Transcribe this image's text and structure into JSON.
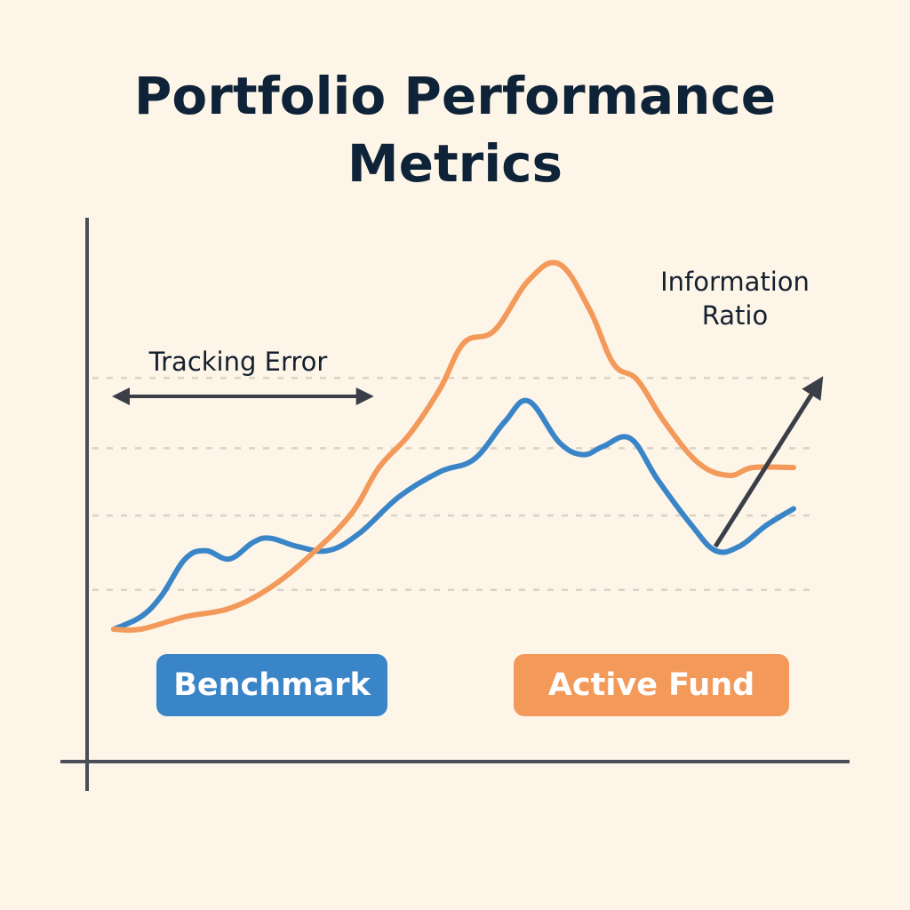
{
  "colors": {
    "background": "#fdf5e8",
    "title": "#0f2338",
    "axis": "#4a4f57",
    "grid": "#d9d2c6",
    "benchmark": "#3a85c8",
    "active_fund": "#f39a5a",
    "annotation": "#3a3f47"
  },
  "chart_data": {
    "type": "line",
    "title_lines": [
      "Portfolio Performance",
      "Metrics"
    ],
    "xlabel": "",
    "ylabel": "",
    "xlim": [
      0,
      100
    ],
    "ylim": [
      0,
      100
    ],
    "grid": "horizontal-dashed",
    "gridlines_y": [
      10.4,
      30.1,
      47.9,
      66.5
    ],
    "series": [
      {
        "name": "Benchmark",
        "color_key": "benchmark",
        "points": [
          [
            0,
            0
          ],
          [
            4,
            3.3
          ],
          [
            7,
            8.8
          ],
          [
            10.5,
            18.6
          ],
          [
            13.5,
            20.8
          ],
          [
            17,
            18.6
          ],
          [
            20.5,
            23.0
          ],
          [
            23,
            24.1
          ],
          [
            27,
            21.9
          ],
          [
            31.5,
            20.8
          ],
          [
            36,
            25.2
          ],
          [
            42,
            35.1
          ],
          [
            48,
            41.7
          ],
          [
            53,
            45.0
          ],
          [
            57.5,
            54.9
          ],
          [
            61,
            60.4
          ],
          [
            65.5,
            49.5
          ],
          [
            69,
            46.2
          ],
          [
            72,
            48.4
          ],
          [
            76,
            50.5
          ],
          [
            80,
            39.6
          ],
          [
            85,
            27.5
          ],
          [
            88.5,
            20.8
          ],
          [
            92,
            21.9
          ],
          [
            96,
            27.5
          ],
          [
            100,
            31.9
          ]
        ]
      },
      {
        "name": "Active Fund",
        "color_key": "active_fund",
        "points": [
          [
            0,
            0
          ],
          [
            4,
            0
          ],
          [
            10.5,
            3.3
          ],
          [
            17,
            5.5
          ],
          [
            23,
            11.0
          ],
          [
            29,
            19.7
          ],
          [
            35,
            30.7
          ],
          [
            39,
            42.8
          ],
          [
            43.5,
            51.6
          ],
          [
            48,
            63.7
          ],
          [
            51.5,
            75.8
          ],
          [
            56,
            79.1
          ],
          [
            61,
            92.3
          ],
          [
            65.5,
            96.7
          ],
          [
            70,
            84.6
          ],
          [
            73.5,
            70.3
          ],
          [
            77,
            66.0
          ],
          [
            81,
            54.9
          ],
          [
            86,
            44.0
          ],
          [
            90.5,
            40.7
          ],
          [
            94,
            42.8
          ],
          [
            100,
            42.8
          ]
        ]
      }
    ],
    "annotations": {
      "tracking_error": {
        "label": "Tracking Error",
        "type": "double-arrow",
        "from_x": 0,
        "to_x": 38
      },
      "information_ratio": {
        "label_lines": [
          "Information",
          "Ratio"
        ],
        "type": "arrow",
        "from": [
          88.5,
          21.9
        ],
        "to": [
          104,
          66.0
        ]
      }
    },
    "legend": {
      "placement": "bottom",
      "entries": [
        "Benchmark",
        "Active Fund"
      ]
    }
  }
}
